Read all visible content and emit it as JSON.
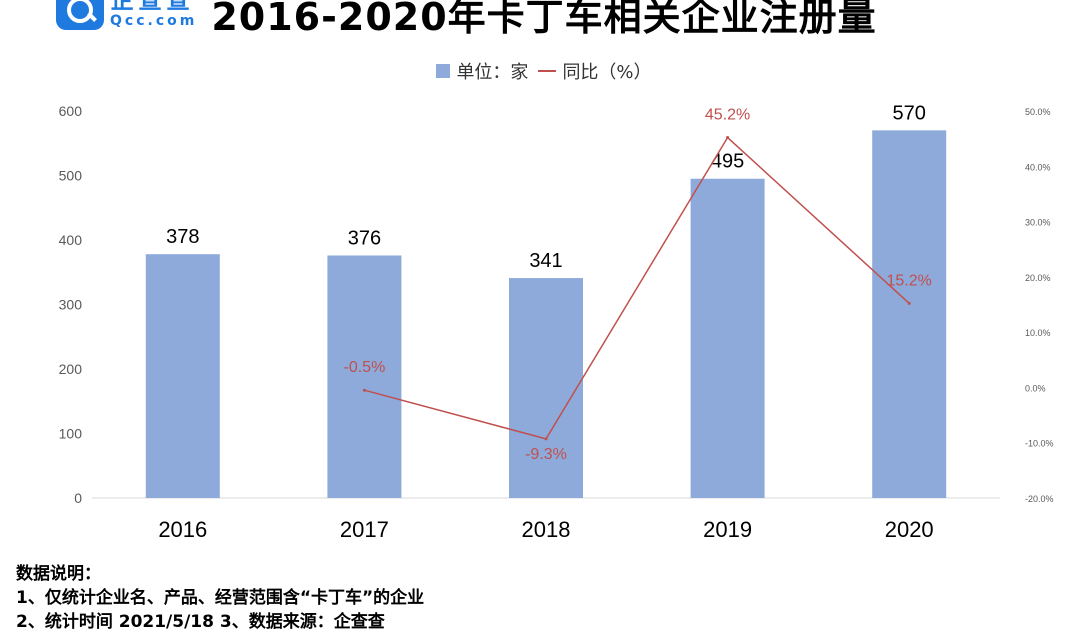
{
  "logo": {
    "cn": "企查查",
    "en": "Qcc.com"
  },
  "title": "2016-2020年卡丁车相关企业注册量",
  "legend": {
    "bar": "单位：家",
    "line": "同比（%）"
  },
  "notes": {
    "heading": "数据说明：",
    "line1": "1、仅统计企业名、产品、经营范围含“卡丁车”的企业",
    "line2": "2、统计时间 2021/5/18    3、数据来源：企查查"
  },
  "colors": {
    "bar": "#8eaadb",
    "line": "#c0504d",
    "brand": "#1f7ae0"
  },
  "chart_data": {
    "type": "bar",
    "categories": [
      "2016",
      "2017",
      "2018",
      "2019",
      "2020"
    ],
    "series": [
      {
        "name": "单位：家",
        "type": "bar",
        "values": [
          378,
          376,
          341,
          495,
          570
        ],
        "labels": [
          "378",
          "376",
          "341",
          "495",
          "570"
        ]
      },
      {
        "name": "同比（%）",
        "type": "line",
        "axis": "right",
        "values": [
          null,
          -0.5,
          -9.3,
          45.2,
          15.2
        ],
        "labels": [
          "",
          "-0.5%",
          "-9.3%",
          "45.2%",
          "15.2%"
        ]
      }
    ],
    "y_left": {
      "ylim": [
        0,
        600
      ],
      "ticks": [
        "0",
        "100",
        "200",
        "300",
        "400",
        "500",
        "600"
      ]
    },
    "y_right": {
      "ylim": [
        -20,
        50
      ],
      "ticks": [
        "-20.0%",
        "-10.0%",
        "0.0%",
        "10.0%",
        "20.0%",
        "30.0%",
        "40.0%",
        "50.0%"
      ]
    },
    "grid": false
  }
}
